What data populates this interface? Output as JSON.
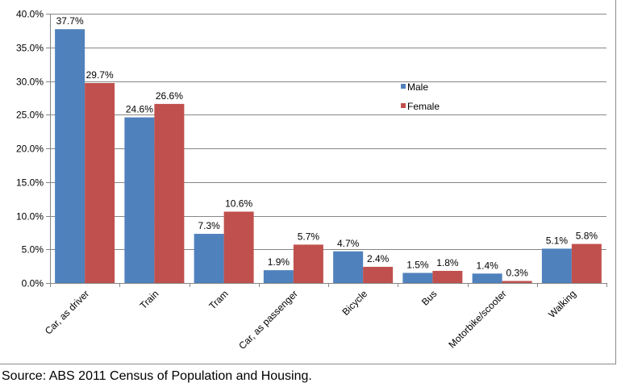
{
  "chart_data": {
    "type": "bar",
    "title": "",
    "xlabel": "",
    "ylabel": "",
    "ylim": [
      0,
      40
    ],
    "y_ticks": [
      "0.0%",
      "5.0%",
      "10.0%",
      "15.0%",
      "20.0%",
      "25.0%",
      "30.0%",
      "35.0%",
      "40.0%"
    ],
    "grid": "horizontal",
    "legend_position": "right",
    "categories": [
      "Car, as driver",
      "Train",
      "Tram",
      "Car, as passenger",
      "Bicycle",
      "Bus",
      "Motorbike/scooter",
      "Walking"
    ],
    "series": [
      {
        "name": "Male",
        "color": "#4f81bd",
        "values": [
          37.7,
          24.6,
          7.3,
          1.9,
          4.7,
          1.5,
          1.4,
          5.1
        ],
        "labels": [
          "37.7%",
          "24.6%",
          "7.3%",
          "1.9%",
          "4.7%",
          "1.5%",
          "1.4%",
          "5.1%"
        ]
      },
      {
        "name": "Female",
        "color": "#c0504d",
        "values": [
          29.7,
          26.6,
          10.6,
          5.7,
          2.4,
          1.8,
          0.3,
          5.8
        ],
        "labels": [
          "29.7%",
          "26.6%",
          "10.6%",
          "5.7%",
          "2.4%",
          "1.8%",
          "0.3%",
          "5.8%"
        ]
      }
    ]
  },
  "source": "Source: ABS 2011 Census of Population and Housing."
}
